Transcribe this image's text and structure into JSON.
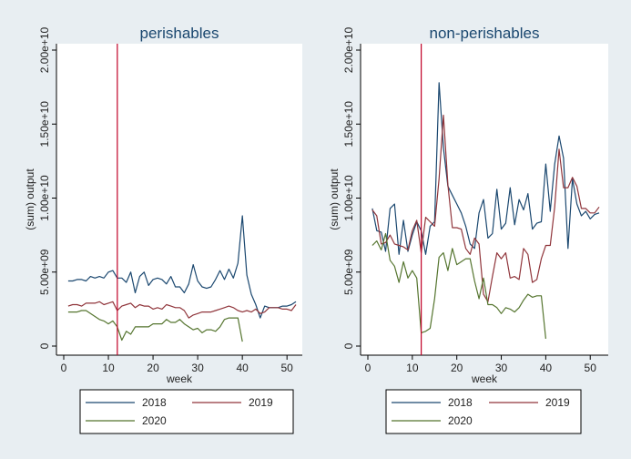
{
  "chart_data": [
    {
      "type": "line",
      "title": "perishables",
      "xlabel": "week",
      "ylabel": "(sum) output",
      "xlim": [
        1,
        52
      ],
      "ylim": [
        0,
        20000000000
      ],
      "xticks": [
        0,
        10,
        20,
        30,
        40,
        50
      ],
      "xtick_labels": [
        "0",
        "10",
        "20",
        "30",
        "40",
        "50"
      ],
      "yticks": [
        0,
        5000000000,
        10000000000,
        15000000000,
        20000000000
      ],
      "ytick_labels": [
        "0",
        "5.00e+09",
        "1.00e+10",
        "1.50e+10",
        "2.00e+10"
      ],
      "vline": 12,
      "legend_position": "bottom",
      "series": [
        {
          "name": "2018",
          "color": "#1a476f",
          "start": 1,
          "values": [
            4.4,
            4.4,
            4.5,
            4.5,
            4.4,
            4.7,
            4.6,
            4.7,
            4.6,
            5.0,
            5.1,
            4.6,
            4.6,
            4.3,
            5.0,
            3.6,
            4.7,
            5.0,
            4.1,
            4.5,
            4.6,
            4.5,
            4.2,
            4.7,
            4.0,
            4.0,
            3.6,
            4.2,
            5.5,
            4.4,
            4.0,
            3.9,
            4.0,
            4.5,
            5.1,
            4.5,
            5.2,
            4.6,
            5.6,
            8.8,
            4.8,
            3.5,
            2.8,
            1.9,
            2.7,
            2.6,
            2.6,
            2.6,
            2.7,
            2.7,
            2.8,
            3.0
          ]
        },
        {
          "name": "2019",
          "color": "#90353b",
          "start": 1,
          "values": [
            2.7,
            2.8,
            2.8,
            2.7,
            2.9,
            2.9,
            2.9,
            3.0,
            2.8,
            2.9,
            3.0,
            2.4,
            2.7,
            2.8,
            2.9,
            2.6,
            2.8,
            2.7,
            2.7,
            2.5,
            2.6,
            2.5,
            2.8,
            2.7,
            2.6,
            2.6,
            2.4,
            1.9,
            2.1,
            2.2,
            2.3,
            2.3,
            2.3,
            2.4,
            2.5,
            2.6,
            2.7,
            2.6,
            2.4,
            2.3,
            2.4,
            2.3,
            2.5,
            2.2,
            2.3,
            2.6,
            2.6,
            2.6,
            2.5,
            2.5,
            2.4,
            2.8
          ]
        },
        {
          "name": "2020",
          "color": "#55752f",
          "start": 1,
          "values": [
            2.3,
            2.3,
            2.3,
            2.4,
            2.4,
            2.2,
            2.0,
            1.8,
            1.7,
            1.5,
            1.7,
            1.3,
            0.4,
            1.0,
            0.8,
            1.3,
            1.3,
            1.3,
            1.3,
            1.5,
            1.5,
            1.5,
            1.8,
            1.6,
            1.6,
            1.8,
            1.5,
            1.3,
            1.1,
            1.2,
            0.9,
            1.1,
            1.1,
            1.0,
            1.3,
            1.8,
            1.9,
            1.9,
            1.9,
            0.3
          ]
        }
      ]
    },
    {
      "type": "line",
      "title": "non-perishables",
      "xlabel": "week",
      "ylabel": "(sum) output",
      "xlim": [
        1,
        52
      ],
      "ylim": [
        0,
        20000000000
      ],
      "xticks": [
        0,
        10,
        20,
        30,
        40,
        50
      ],
      "xtick_labels": [
        "0",
        "10",
        "20",
        "30",
        "40",
        "50"
      ],
      "yticks": [
        0,
        5000000000,
        10000000000,
        15000000000,
        20000000000
      ],
      "ytick_labels": [
        "0",
        "5.00e+09",
        "1.00e+10",
        "1.50e+10",
        "2.00e+10"
      ],
      "vline": 12,
      "legend_position": "bottom",
      "series": [
        {
          "name": "2018",
          "color": "#1a476f",
          "start": 1,
          "values": [
            9.3,
            7.8,
            7.7,
            6.4,
            9.3,
            9.6,
            6.2,
            8.5,
            6.4,
            7.5,
            8.4,
            7.8,
            6.2,
            8.1,
            8.4,
            17.8,
            13.4,
            10.8,
            10.2,
            9.6,
            9.0,
            8.1,
            6.9,
            6.6,
            9.0,
            9.9,
            7.3,
            7.6,
            10.6,
            7.9,
            8.3,
            10.7,
            8.2,
            9.9,
            9.2,
            10.3,
            7.9,
            8.3,
            8.4,
            12.3,
            9.1,
            12.3,
            14.2,
            12.7,
            6.6,
            11.3,
            9.6,
            8.8,
            9.1,
            8.6,
            8.9,
            9.0
          ]
        },
        {
          "name": "2019",
          "color": "#90353b",
          "start": 1,
          "values": [
            9.2,
            8.8,
            6.9,
            7.0,
            7.5,
            6.9,
            6.8,
            6.7,
            6.5,
            7.8,
            8.5,
            6.3,
            8.7,
            8.4,
            8.1,
            11.3,
            15.6,
            10.9,
            8.0,
            8.0,
            7.9,
            6.6,
            6.2,
            7.3,
            6.9,
            3.5,
            3.0,
            4.7,
            6.3,
            5.9,
            6.3,
            4.6,
            4.7,
            4.5,
            6.6,
            6.2,
            4.3,
            4.5,
            5.9,
            6.8,
            6.8,
            9.4,
            13.3,
            10.7,
            10.7,
            11.4,
            10.8,
            9.3,
            9.3,
            9.0,
            9.0,
            9.4
          ]
        },
        {
          "name": "2020",
          "color": "#55752f",
          "start": 1,
          "values": [
            6.8,
            7.1,
            6.5,
            7.6,
            5.8,
            5.4,
            4.3,
            5.7,
            4.6,
            5.1,
            4.6,
            0.9,
            1.0,
            1.2,
            3.2,
            6.0,
            6.3,
            5.1,
            6.6,
            5.5,
            5.7,
            5.9,
            5.9,
            4.4,
            3.2,
            4.6,
            2.8,
            2.8,
            2.6,
            2.2,
            2.6,
            2.5,
            2.3,
            2.6,
            3.1,
            3.5,
            3.3,
            3.4,
            3.4,
            0.5
          ]
        }
      ]
    }
  ]
}
